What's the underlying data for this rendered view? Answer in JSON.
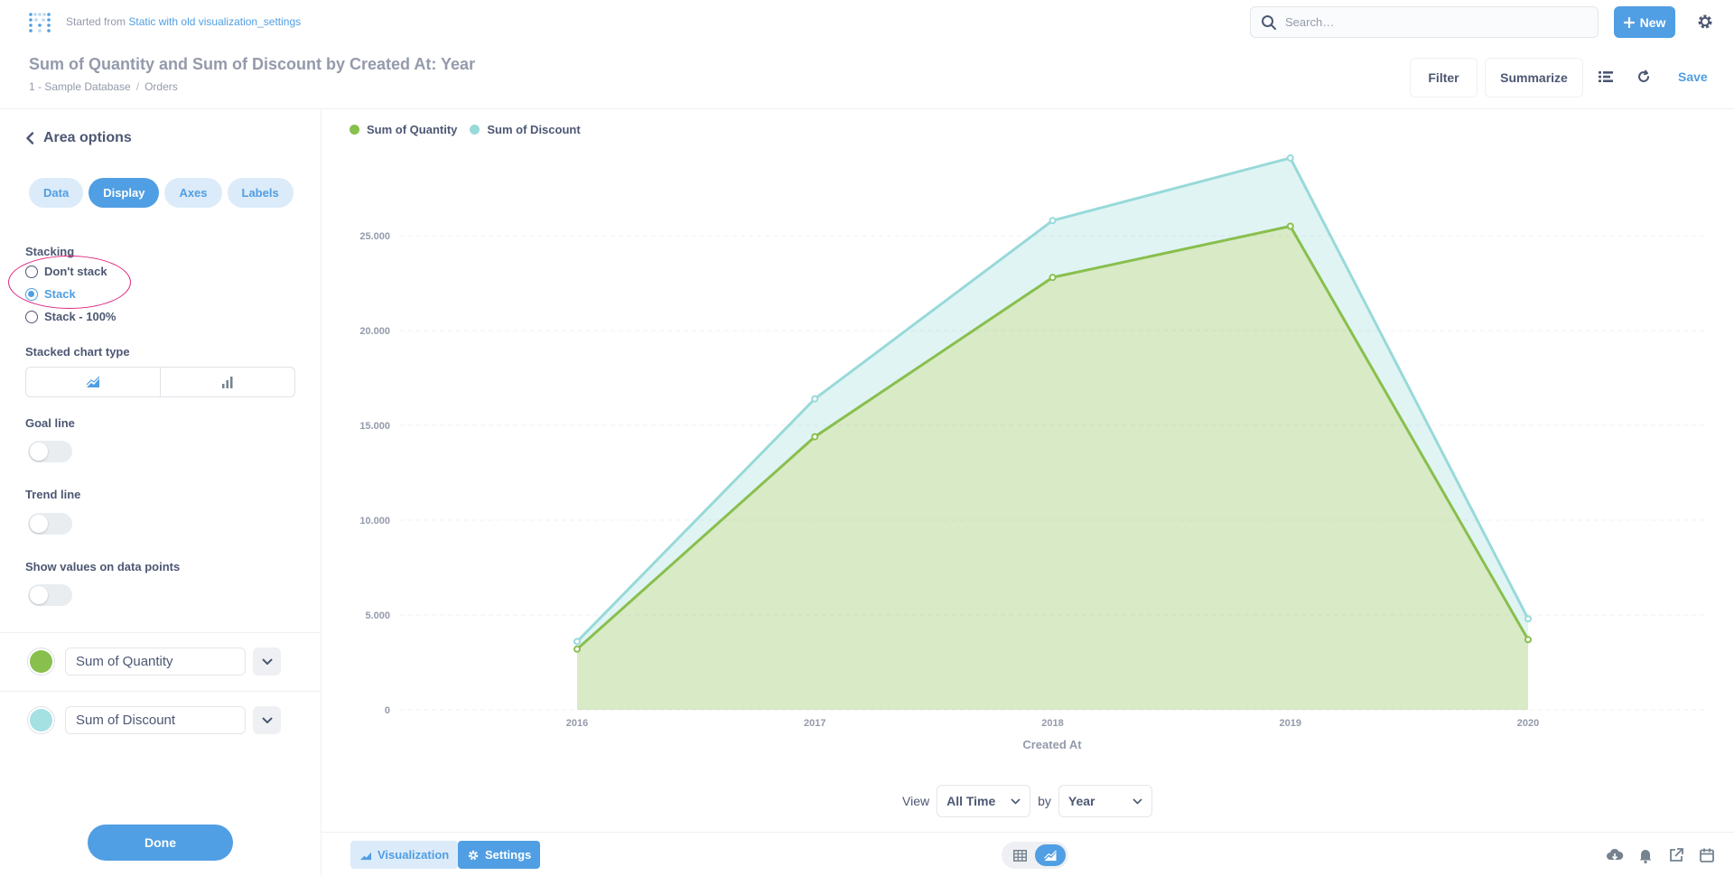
{
  "header": {
    "started_prefix": "Started from",
    "started_link": "Static with old visualization_settings",
    "search_placeholder": "Search…",
    "new_label": "New",
    "title": "Sum of Quantity and Sum of Discount by Created At: Year",
    "breadcrumb": [
      "1 - Sample Database",
      "Orders"
    ],
    "filter_label": "Filter",
    "summarize_label": "Summarize",
    "save_label": "Save"
  },
  "sidebar": {
    "title": "Area options",
    "tabs": [
      {
        "label": "Data",
        "active": false
      },
      {
        "label": "Display",
        "active": true
      },
      {
        "label": "Axes",
        "active": false
      },
      {
        "label": "Labels",
        "active": false
      }
    ],
    "stacking_label": "Stacking",
    "stacking_options": [
      {
        "label": "Don't stack",
        "checked": false
      },
      {
        "label": "Stack",
        "checked": true
      },
      {
        "label": "Stack - 100%",
        "checked": false
      }
    ],
    "stacked_chart_type_label": "Stacked chart type",
    "goal_line_label": "Goal line",
    "goal_line_on": false,
    "trend_line_label": "Trend line",
    "trend_line_on": false,
    "show_values_label": "Show values on data points",
    "show_values_on": false,
    "series": [
      {
        "name": "Sum of Quantity",
        "color": "#88bf4d"
      },
      {
        "name": "Sum of Discount",
        "color": "#a5e0e3"
      }
    ],
    "done_label": "Done"
  },
  "chart_data": {
    "type": "area",
    "stacked": true,
    "categories": [
      "2016",
      "2017",
      "2018",
      "2019",
      "2020"
    ],
    "series": [
      {
        "name": "Sum of Quantity",
        "color": "#88bf4d",
        "values": [
          3200,
          14400,
          22800,
          25500,
          3700
        ]
      },
      {
        "name": "Sum of Discount",
        "color": "#98d9d9",
        "values": [
          400,
          2000,
          3000,
          3600,
          1100
        ]
      }
    ],
    "yticks": [
      "0",
      "5.000",
      "10.000",
      "15.000",
      "20.000",
      "25.000"
    ],
    "ylim": [
      0,
      30000
    ],
    "xlabel": "Created At",
    "ylabel": "",
    "legend_position": "top-left",
    "grid": true
  },
  "viewbar": {
    "view_label": "View",
    "view_value": "All Time",
    "by_label": "by",
    "by_value": "Year"
  },
  "footer": {
    "visualization_label": "Visualization",
    "settings_label": "Settings"
  }
}
